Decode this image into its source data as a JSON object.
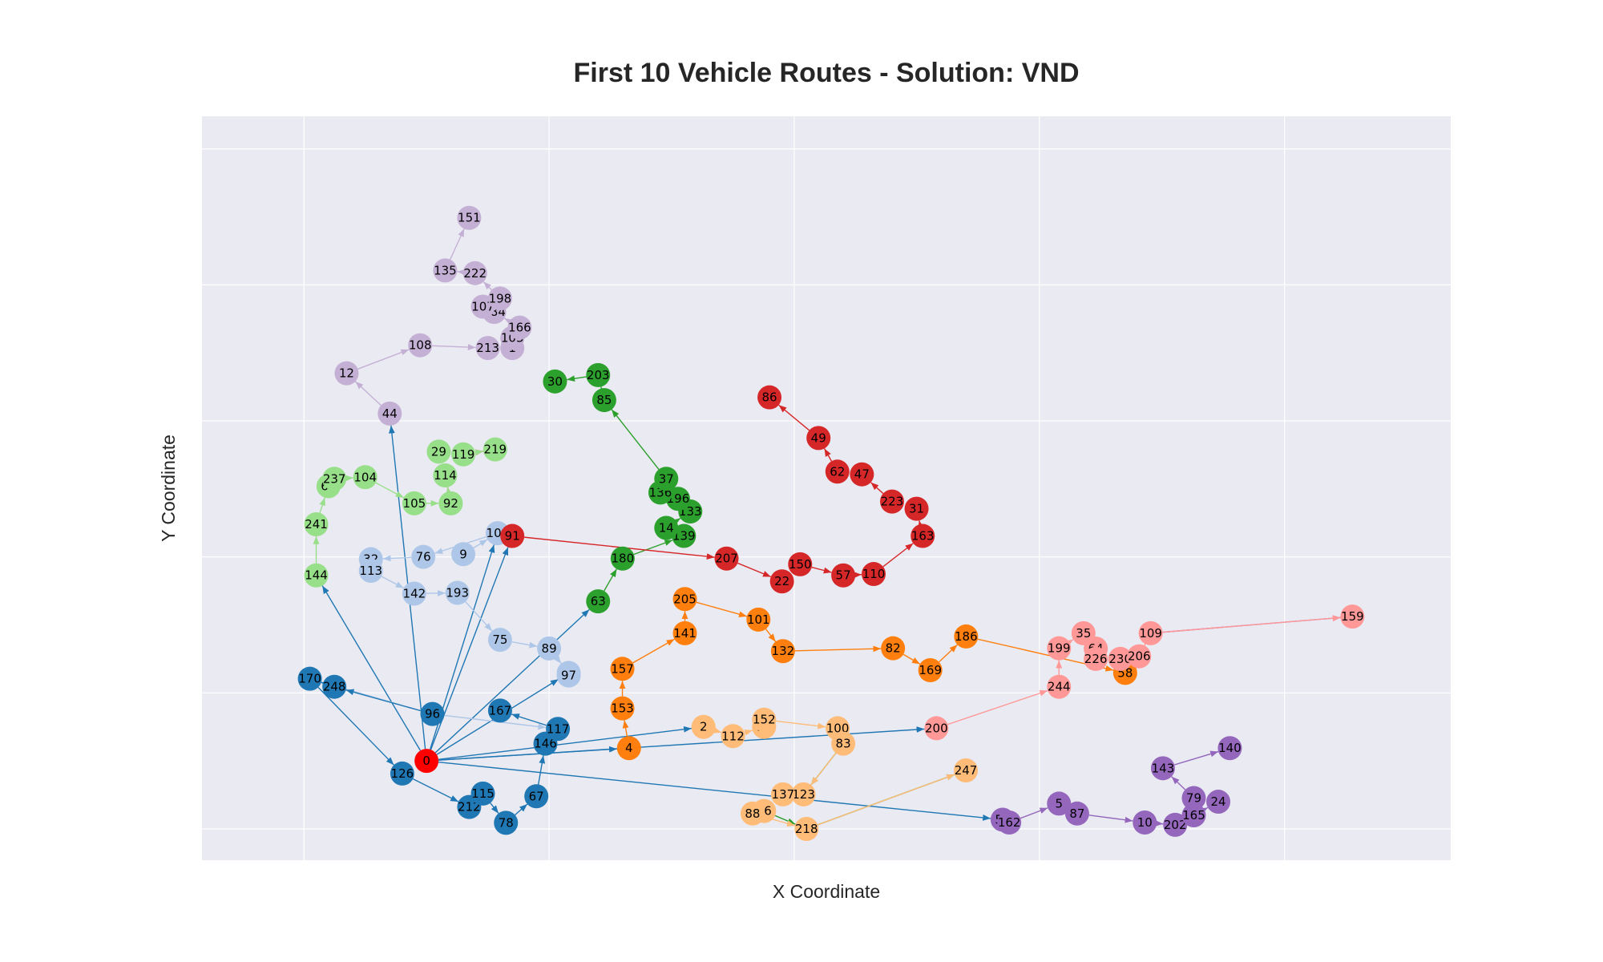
{
  "chart_data": {
    "type": "scatter",
    "title": "First 10 Vehicle Routes - Solution: VND",
    "xlabel": "X Coordinate",
    "ylabel": "Y Coordinate",
    "xlim": [
      -4.16,
      46.78
    ],
    "ylim": [
      -2.3,
      52.4
    ],
    "xgrid": [
      0,
      10,
      20,
      30,
      40
    ],
    "ygrid": [
      0,
      10,
      20,
      30,
      40,
      50
    ],
    "grid": true,
    "tick_labels_visible": false,
    "depot": {
      "id": "0",
      "x": 5,
      "y": 5,
      "color": "#ff0000"
    },
    "routes": [
      {
        "color": "#1f77b4",
        "customers": [
          {
            "id": "96",
            "x": 5.24,
            "y": 8.45
          },
          {
            "id": "248",
            "x": 1.24,
            "y": 10.45
          },
          {
            "id": "170",
            "x": 0.24,
            "y": 11.04
          },
          {
            "id": "126",
            "x": 4.01,
            "y": 4.07
          },
          {
            "id": "212",
            "x": 6.74,
            "y": 1.61
          },
          {
            "id": "115",
            "x": 7.3,
            "y": 2.6
          },
          {
            "id": "78",
            "x": 8.24,
            "y": 0.45
          },
          {
            "id": "67",
            "x": 9.48,
            "y": 2.4
          },
          {
            "id": "146",
            "x": 9.85,
            "y": 6.27
          },
          {
            "id": "117",
            "x": 10.36,
            "y": 7.35
          },
          {
            "id": "167",
            "x": 8.0,
            "y": 8.7
          }
        ]
      },
      {
        "color": "#aec7e8",
        "customers": [
          {
            "id": "9",
            "x": 6.5,
            "y": 20.2
          },
          {
            "id": "106",
            "x": 7.9,
            "y": 21.74
          },
          {
            "id": "76",
            "x": 4.87,
            "y": 20.0
          },
          {
            "id": "32",
            "x": 2.73,
            "y": 19.83
          },
          {
            "id": "113",
            "x": 2.73,
            "y": 18.98
          },
          {
            "id": "142",
            "x": 4.5,
            "y": 17.3
          },
          {
            "id": "193",
            "x": 6.26,
            "y": 17.36
          },
          {
            "id": "75",
            "x": 8.0,
            "y": 13.9
          },
          {
            "id": "89",
            "x": 10.0,
            "y": 13.27
          },
          {
            "id": "84",
            "x": 10.8,
            "y": 11.47
          },
          {
            "id": "97",
            "x": 10.8,
            "y": 11.28
          }
        ]
      },
      {
        "color": "#ff7f0e",
        "customers": [
          {
            "id": "4",
            "x": 13.26,
            "y": 5.94
          },
          {
            "id": "153",
            "x": 12.99,
            "y": 8.86
          },
          {
            "id": "157",
            "x": 12.99,
            "y": 11.77
          },
          {
            "id": "141",
            "x": 15.54,
            "y": 14.39
          },
          {
            "id": "205",
            "x": 15.54,
            "y": 16.9
          },
          {
            "id": "101",
            "x": 18.54,
            "y": 15.39
          },
          {
            "id": "132",
            "x": 19.54,
            "y": 13.07
          },
          {
            "id": "82",
            "x": 24.03,
            "y": 13.28
          },
          {
            "id": "169",
            "x": 25.55,
            "y": 11.67
          },
          {
            "id": "186",
            "x": 27.01,
            "y": 14.15
          },
          {
            "id": "58",
            "x": 33.5,
            "y": 11.47
          }
        ]
      },
      {
        "color": "#ffbb78",
        "customers": [
          {
            "id": "2",
            "x": 16.3,
            "y": 7.5
          },
          {
            "id": "112",
            "x": 17.5,
            "y": 6.82
          },
          {
            "id": "19",
            "x": 18.77,
            "y": 7.5
          },
          {
            "id": "152",
            "x": 18.77,
            "y": 8.03
          },
          {
            "id": "100",
            "x": 21.77,
            "y": 7.4
          },
          {
            "id": "83",
            "x": 22.0,
            "y": 6.27
          },
          {
            "id": "123",
            "x": 20.38,
            "y": 2.54
          },
          {
            "id": "137",
            "x": 19.54,
            "y": 2.54
          },
          {
            "id": "16",
            "x": 18.77,
            "y": 1.32
          },
          {
            "id": "88",
            "x": 18.3,
            "y": 1.13
          },
          {
            "id": "218",
            "x": 20.5,
            "y": 0.0
          },
          {
            "id": "247",
            "x": 27.0,
            "y": 4.3
          }
        ]
      },
      {
        "color": "#2ca02c",
        "customers": [
          {
            "id": "63",
            "x": 12.0,
            "y": 16.73
          },
          {
            "id": "180",
            "x": 13.0,
            "y": 19.88
          },
          {
            "id": "139",
            "x": 15.5,
            "y": 21.54
          },
          {
            "id": "14",
            "x": 14.78,
            "y": 22.13
          },
          {
            "id": "133",
            "x": 15.76,
            "y": 23.34
          },
          {
            "id": "196",
            "x": 15.26,
            "y": 24.27
          },
          {
            "id": "136",
            "x": 14.54,
            "y": 24.73
          },
          {
            "id": "37",
            "x": 14.78,
            "y": 25.74
          },
          {
            "id": "85",
            "x": 12.25,
            "y": 31.53
          },
          {
            "id": "203",
            "x": 12.0,
            "y": 33.37
          },
          {
            "id": "30",
            "x": 10.24,
            "y": 32.9
          }
        ]
      },
      {
        "color": "#98df8a",
        "customers": [
          {
            "id": "144",
            "x": 0.5,
            "y": 18.64
          },
          {
            "id": "241",
            "x": 0.5,
            "y": 22.4
          },
          {
            "id": "66",
            "x": 1.0,
            "y": 25.2
          },
          {
            "id": "237",
            "x": 1.24,
            "y": 25.74
          },
          {
            "id": "104",
            "x": 2.5,
            "y": 25.86
          },
          {
            "id": "105",
            "x": 4.5,
            "y": 23.94
          },
          {
            "id": "92",
            "x": 5.99,
            "y": 23.94
          },
          {
            "id": "114",
            "x": 5.76,
            "y": 25.99
          },
          {
            "id": "29",
            "x": 5.5,
            "y": 27.74
          },
          {
            "id": "119",
            "x": 6.5,
            "y": 27.54
          },
          {
            "id": "219",
            "x": 7.8,
            "y": 27.9
          }
        ]
      },
      {
        "color": "#d62728",
        "customers": [
          {
            "id": "91",
            "x": 8.5,
            "y": 21.54
          },
          {
            "id": "207",
            "x": 17.24,
            "y": 19.88
          },
          {
            "id": "22",
            "x": 19.5,
            "y": 18.2
          },
          {
            "id": "150",
            "x": 20.24,
            "y": 19.46
          },
          {
            "id": "57",
            "x": 22.0,
            "y": 18.64
          },
          {
            "id": "110",
            "x": 23.24,
            "y": 18.74
          },
          {
            "id": "163",
            "x": 25.24,
            "y": 21.54
          },
          {
            "id": "31",
            "x": 24.99,
            "y": 23.54
          },
          {
            "id": "223",
            "x": 23.99,
            "y": 24.07
          },
          {
            "id": "47",
            "x": 22.76,
            "y": 26.07
          },
          {
            "id": "62",
            "x": 21.76,
            "y": 26.27
          },
          {
            "id": "49",
            "x": 20.99,
            "y": 28.74
          },
          {
            "id": "86",
            "x": 18.99,
            "y": 31.73
          }
        ]
      },
      {
        "color": "#ff9896",
        "customers": [
          {
            "id": "200",
            "x": 25.8,
            "y": 7.4
          },
          {
            "id": "244",
            "x": 30.8,
            "y": 10.45
          },
          {
            "id": "199",
            "x": 30.8,
            "y": 13.28
          },
          {
            "id": "35",
            "x": 31.8,
            "y": 14.39
          },
          {
            "id": "64",
            "x": 32.3,
            "y": 13.26
          },
          {
            "id": "226",
            "x": 32.3,
            "y": 12.5
          },
          {
            "id": "230",
            "x": 33.3,
            "y": 12.5
          },
          {
            "id": "206",
            "x": 34.07,
            "y": 12.69
          },
          {
            "id": "109",
            "x": 34.54,
            "y": 14.39
          },
          {
            "id": "159",
            "x": 42.77,
            "y": 15.61
          }
        ]
      },
      {
        "color": "#9467bd",
        "customers": [
          {
            "id": "51",
            "x": 28.5,
            "y": 0.68
          },
          {
            "id": "162",
            "x": 28.77,
            "y": 0.47
          },
          {
            "id": "5",
            "x": 30.8,
            "y": 1.86
          },
          {
            "id": "87",
            "x": 31.54,
            "y": 1.13
          },
          {
            "id": "10",
            "x": 34.3,
            "y": 0.47
          },
          {
            "id": "202",
            "x": 35.54,
            "y": 0.3
          },
          {
            "id": "165",
            "x": 36.3,
            "y": 1.0
          },
          {
            "id": "24",
            "x": 37.3,
            "y": 2.0
          },
          {
            "id": "79",
            "x": 36.3,
            "y": 2.27
          },
          {
            "id": "143",
            "x": 35.04,
            "y": 4.46
          },
          {
            "id": "140",
            "x": 37.77,
            "y": 5.94
          }
        ]
      },
      {
        "color": "#c5b0d5",
        "customers": [
          {
            "id": "44",
            "x": 3.5,
            "y": 30.54
          },
          {
            "id": "12",
            "x": 1.74,
            "y": 33.5
          },
          {
            "id": "108",
            "x": 4.74,
            "y": 35.56
          },
          {
            "id": "213",
            "x": 7.5,
            "y": 35.36
          },
          {
            "id": "1",
            "x": 8.5,
            "y": 35.36
          },
          {
            "id": "103",
            "x": 8.5,
            "y": 36.1
          },
          {
            "id": "166",
            "x": 8.8,
            "y": 36.86
          },
          {
            "id": "184",
            "x": 7.76,
            "y": 38.01
          },
          {
            "id": "107",
            "x": 7.3,
            "y": 38.4
          },
          {
            "id": "198",
            "x": 8.0,
            "y": 39.0
          },
          {
            "id": "222",
            "x": 6.98,
            "y": 40.86
          },
          {
            "id": "135",
            "x": 5.76,
            "y": 41.06
          },
          {
            "id": "151",
            "x": 6.74,
            "y": 44.93
          }
        ]
      }
    ],
    "extra_links": [
      {
        "from": "0",
        "to": "200",
        "color": "#1f77b4"
      },
      {
        "from": "0",
        "to": "2",
        "color": "#1f77b4"
      },
      {
        "from": "0",
        "to": "4",
        "color": "#1f77b4"
      },
      {
        "from": "0",
        "to": "63",
        "color": "#1f77b4"
      },
      {
        "from": "0",
        "to": "91",
        "color": "#1f77b4"
      },
      {
        "from": "0",
        "to": "44",
        "color": "#1f77b4"
      },
      {
        "from": "0",
        "to": "144",
        "color": "#1f77b4"
      },
      {
        "from": "0",
        "to": "51",
        "color": "#1f77b4"
      },
      {
        "from": "0",
        "to": "84",
        "color": "#1f77b4"
      },
      {
        "from": "0",
        "to": "106",
        "color": "#1f77b4"
      },
      {
        "from": "109",
        "to": "159",
        "color": "#9467bd"
      },
      {
        "from": "16",
        "to": "218",
        "color": "#2ca02c"
      },
      {
        "from": "83",
        "to": "123",
        "color": "#2ca02c"
      },
      {
        "from": "218",
        "to": "247",
        "color": "#2ca02c"
      },
      {
        "from": "92",
        "to": "114",
        "color": "#d62728"
      },
      {
        "from": "119",
        "to": "219",
        "color": "#d62728"
      },
      {
        "from": "143",
        "to": "140",
        "color": "#c5b0d5"
      },
      {
        "from": "96",
        "to": "170",
        "color": "#aec7e8"
      },
      {
        "from": "96",
        "to": "117",
        "color": "#aec7e8"
      }
    ]
  }
}
